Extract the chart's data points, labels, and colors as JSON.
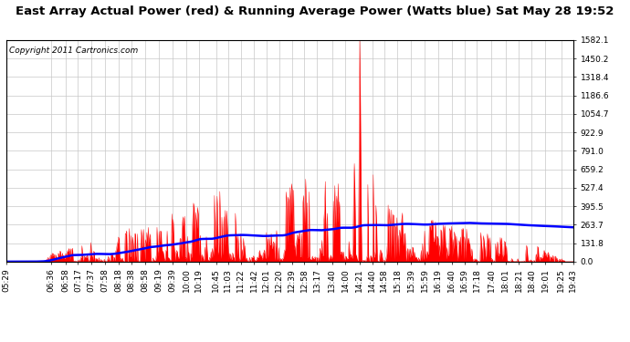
{
  "title": "East Array Actual Power (red) & Running Average Power (Watts blue) Sat May 28 19:52",
  "copyright": "Copyright 2011 Cartronics.com",
  "ymax": 1582.1,
  "ymin": 0.0,
  "yticks": [
    0.0,
    131.8,
    263.7,
    395.5,
    527.4,
    659.2,
    791.0,
    922.9,
    1054.7,
    1186.6,
    1318.4,
    1450.2,
    1582.1
  ],
  "xtick_labels": [
    "05:29",
    "06:36",
    "06:58",
    "07:17",
    "07:37",
    "07:58",
    "08:18",
    "08:38",
    "08:58",
    "09:19",
    "09:39",
    "10:00",
    "10:19",
    "10:45",
    "11:03",
    "11:22",
    "11:42",
    "12:01",
    "12:20",
    "12:39",
    "12:58",
    "13:17",
    "13:40",
    "14:00",
    "14:21",
    "14:40",
    "14:58",
    "15:18",
    "15:39",
    "15:59",
    "16:19",
    "16:40",
    "16:59",
    "17:18",
    "17:40",
    "18:01",
    "18:21",
    "18:40",
    "19:01",
    "19:25",
    "19:43"
  ],
  "red_color": "#FF0000",
  "blue_color": "#0000FF",
  "bg_color": "#FFFFFF",
  "grid_color": "#C8C8C8",
  "title_fontsize": 9.5,
  "copyright_fontsize": 6.5,
  "tick_fontsize": 6.5
}
